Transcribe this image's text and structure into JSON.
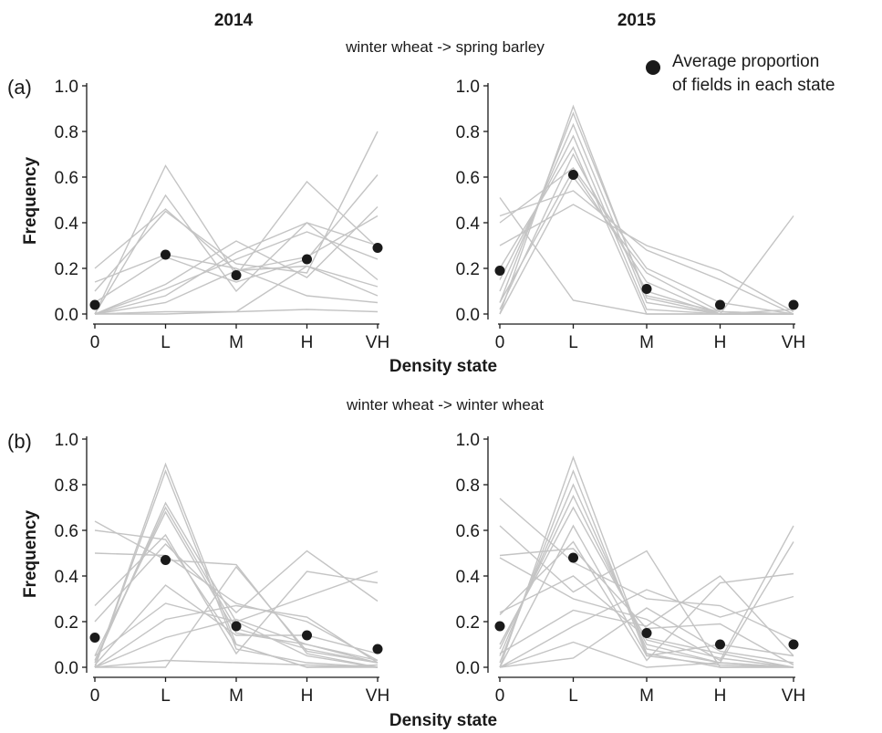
{
  "column_titles": [
    "2014",
    "2015"
  ],
  "row_titles": [
    "winter wheat -> spring barley",
    "winter wheat -> winter wheat"
  ],
  "panel_labels": [
    "(a)",
    "(b)"
  ],
  "y_axis_label": "Frequency",
  "x_axis_label": "Density state",
  "legend": {
    "line1": "Average proportion",
    "line2": "of fields in each state",
    "marker_color": "#1a1a1a"
  },
  "colors": {
    "field_lines": "#c4c4c4",
    "average_points": "#1a1a1a",
    "axes": "#1a1a1a"
  },
  "chart_data": [
    {
      "type": "line",
      "panel": "(a) 2014",
      "categories": [
        "0",
        "L",
        "M",
        "H",
        "VH"
      ],
      "ylim": [
        0,
        1.0
      ],
      "yticks": [
        "0.0",
        "0.2",
        "0.4",
        "0.6",
        "0.8",
        "1.0"
      ],
      "ylabel": "Frequency",
      "xlabel": "Density state",
      "series_lines": [
        [
          0.0,
          0.65,
          0.17,
          0.58,
          0.29
        ],
        [
          0.0,
          0.52,
          0.1,
          0.4,
          0.15
        ],
        [
          0.2,
          0.46,
          0.19,
          0.21,
          0.08
        ],
        [
          0.1,
          0.45,
          0.22,
          0.18,
          0.8
        ],
        [
          0.05,
          0.25,
          0.14,
          0.24,
          0.61
        ],
        [
          0.0,
          0.13,
          0.32,
          0.16,
          0.47
        ],
        [
          0.0,
          0.08,
          0.27,
          0.4,
          0.3
        ],
        [
          0.0,
          0.05,
          0.19,
          0.25,
          0.43
        ],
        [
          0.0,
          0.01,
          0.01,
          0.21,
          0.12
        ],
        [
          0.0,
          0.0,
          0.01,
          0.02,
          0.01
        ],
        [
          0.14,
          0.26,
          0.2,
          0.08,
          0.05
        ],
        [
          0.0,
          0.11,
          0.24,
          0.36,
          0.24
        ]
      ],
      "average": [
        0.04,
        0.26,
        0.17,
        0.24,
        0.29
      ]
    },
    {
      "type": "line",
      "panel": "(a) 2015",
      "categories": [
        "0",
        "L",
        "M",
        "H",
        "VH"
      ],
      "ylim": [
        0,
        1.0
      ],
      "yticks": [
        "0.0",
        "0.2",
        "0.4",
        "0.6",
        "0.8",
        "1.0"
      ],
      "ylabel": "",
      "xlabel": "",
      "series_lines": [
        [
          0.0,
          0.91,
          0.07,
          0.0,
          0.0
        ],
        [
          0.05,
          0.88,
          0.08,
          0.01,
          0.0
        ],
        [
          0.1,
          0.83,
          0.05,
          0.0,
          0.0
        ],
        [
          0.15,
          0.78,
          0.02,
          0.0,
          0.0
        ],
        [
          0.2,
          0.73,
          0.0,
          0.0,
          0.0
        ],
        [
          0.4,
          0.64,
          0.2,
          0.05,
          0.0
        ],
        [
          0.43,
          0.54,
          0.28,
          0.15,
          0.0
        ],
        [
          0.51,
          0.06,
          0.0,
          0.0,
          0.0
        ],
        [
          0.05,
          0.63,
          0.14,
          0.0,
          0.43
        ],
        [
          0.3,
          0.48,
          0.3,
          0.19,
          0.01
        ],
        [
          0.0,
          0.6,
          0.18,
          0.01,
          0.0
        ],
        [
          0.02,
          0.7,
          0.1,
          0.0,
          0.02
        ]
      ],
      "average": [
        0.19,
        0.61,
        0.11,
        0.04,
        0.04
      ]
    },
    {
      "type": "line",
      "panel": "(b) 2014",
      "categories": [
        "0",
        "L",
        "M",
        "H",
        "VH"
      ],
      "ylim": [
        0,
        1.0
      ],
      "yticks": [
        "0.0",
        "0.2",
        "0.4",
        "0.6",
        "0.8",
        "1.0"
      ],
      "ylabel": "Frequency",
      "xlabel": "Density state",
      "series_lines": [
        [
          0.0,
          0.89,
          0.1,
          0.0,
          0.01
        ],
        [
          0.0,
          0.86,
          0.08,
          0.02,
          0.0
        ],
        [
          0.02,
          0.72,
          0.2,
          0.05,
          0.0
        ],
        [
          0.03,
          0.7,
          0.17,
          0.08,
          0.02
        ],
        [
          0.05,
          0.68,
          0.15,
          0.1,
          0.02
        ],
        [
          0.64,
          0.47,
          0.45,
          0.06,
          0.0
        ],
        [
          0.6,
          0.56,
          0.1,
          0.0,
          0.0
        ],
        [
          0.5,
          0.49,
          0.28,
          0.2,
          0.03
        ],
        [
          0.2,
          0.54,
          0.24,
          0.51,
          0.29
        ],
        [
          0.27,
          0.58,
          0.06,
          0.42,
          0.37
        ],
        [
          0.05,
          0.28,
          0.2,
          0.31,
          0.42
        ],
        [
          0.0,
          0.21,
          0.27,
          0.22,
          0.02
        ],
        [
          0.0,
          0.13,
          0.21,
          0.1,
          0.03
        ],
        [
          0.0,
          0.03,
          0.02,
          0.01,
          0.0
        ],
        [
          0.0,
          0.0,
          0.44,
          0.07,
          0.02
        ],
        [
          0.01,
          0.36,
          0.14,
          0.14,
          0.06
        ]
      ],
      "average": [
        0.13,
        0.47,
        0.18,
        0.14,
        0.08
      ]
    },
    {
      "type": "line",
      "panel": "(b) 2015",
      "categories": [
        "0",
        "L",
        "M",
        "H",
        "VH"
      ],
      "ylim": [
        0,
        1.0
      ],
      "yticks": [
        "0.0",
        "0.2",
        "0.4",
        "0.6",
        "0.8",
        "1.0"
      ],
      "ylabel": "",
      "xlabel": "",
      "series_lines": [
        [
          0.0,
          0.92,
          0.06,
          0.0,
          0.0
        ],
        [
          0.02,
          0.86,
          0.05,
          0.01,
          0.0
        ],
        [
          0.05,
          0.8,
          0.08,
          0.02,
          0.0
        ],
        [
          0.08,
          0.75,
          0.1,
          0.02,
          0.0
        ],
        [
          0.1,
          0.7,
          0.12,
          0.04,
          0.0
        ],
        [
          0.74,
          0.46,
          0.3,
          0.27,
          0.12
        ],
        [
          0.62,
          0.33,
          0.51,
          0.0,
          0.0
        ],
        [
          0.49,
          0.52,
          0.17,
          0.19,
          0.01
        ],
        [
          0.48,
          0.3,
          0.21,
          0.03,
          0.62
        ],
        [
          0.23,
          0.55,
          0.03,
          0.37,
          0.41
        ],
        [
          0.06,
          0.25,
          0.18,
          0.4,
          0.05
        ],
        [
          0.0,
          0.18,
          0.34,
          0.22,
          0.31
        ],
        [
          0.0,
          0.11,
          0.0,
          0.02,
          0.55
        ],
        [
          0.0,
          0.04,
          0.26,
          0.07,
          0.02
        ],
        [
          0.24,
          0.4,
          0.13,
          0.06,
          0.0
        ],
        [
          0.0,
          0.62,
          0.05,
          0.1,
          0.05
        ]
      ],
      "average": [
        0.18,
        0.48,
        0.15,
        0.1,
        0.1
      ]
    }
  ]
}
